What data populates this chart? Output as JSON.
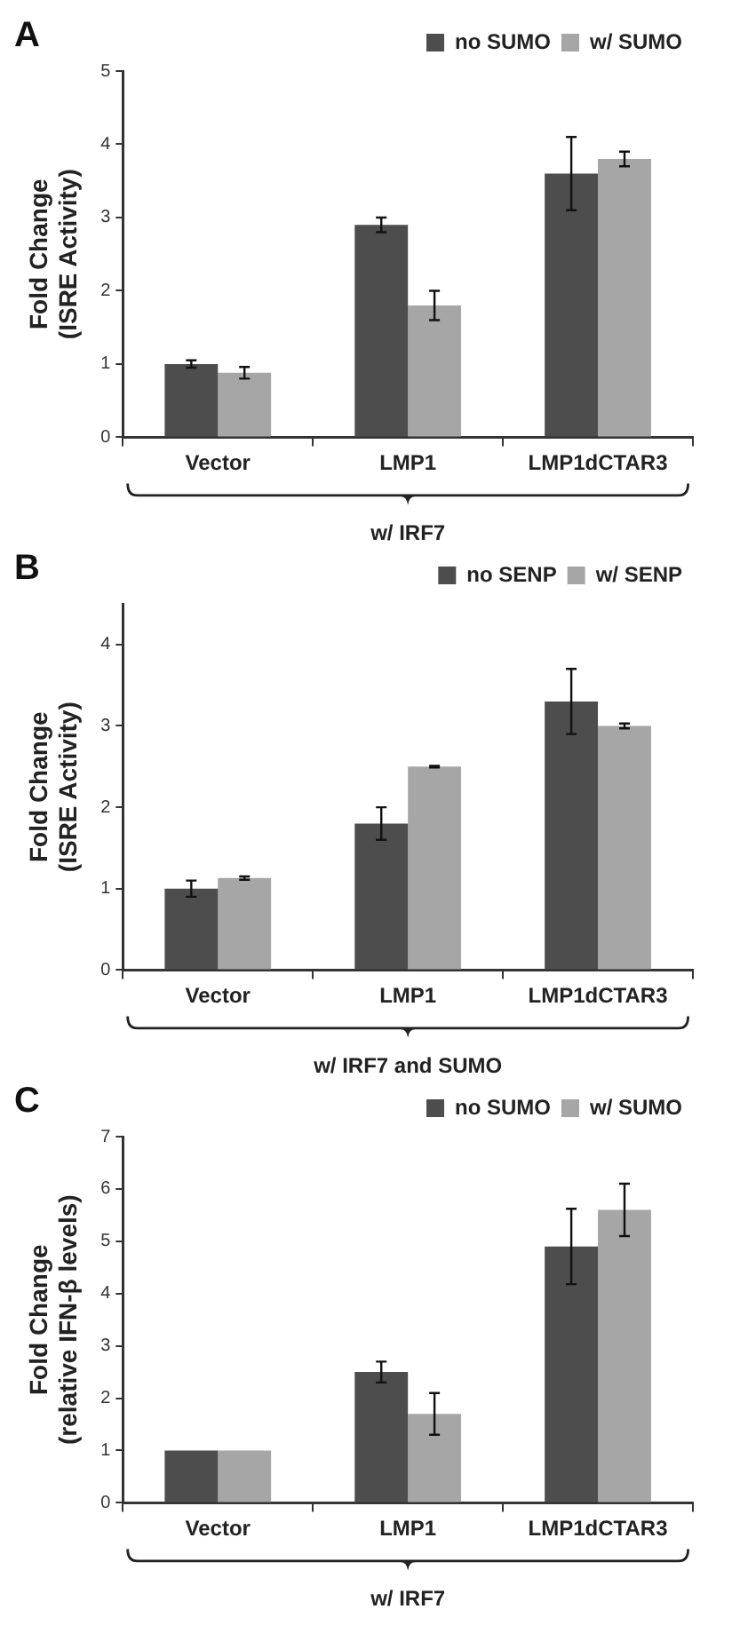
{
  "chart_data": [
    {
      "type": "bar",
      "title": "A",
      "ylabel": "Fold Change\n(ISRE Activity)",
      "xlabel": "w/ IRF7",
      "categories": [
        "Vector",
        "LMP1",
        "LMP1dCTAR3"
      ],
      "ylim": [
        0,
        5
      ],
      "yticks": [
        0,
        1,
        2,
        3,
        4,
        5
      ],
      "grid": false,
      "legend": "top right",
      "series": [
        {
          "name": "no SUMO",
          "color": "#4d4d4d",
          "values": [
            1.0,
            2.9,
            3.6
          ],
          "errors": [
            0.05,
            0.1,
            0.5
          ]
        },
        {
          "name": "w/ SUMO",
          "color": "#a6a6a6",
          "values": [
            0.88,
            1.8,
            3.8
          ],
          "errors": [
            0.08,
            0.2,
            0.1
          ]
        }
      ]
    },
    {
      "type": "bar",
      "title": "B",
      "ylabel": "Fold Change\n(ISRE Activity)",
      "xlabel": "w/ IRF7 and SUMO",
      "categories": [
        "Vector",
        "LMP1",
        "LMP1dCTAR3"
      ],
      "ylim": [
        0,
        4.5
      ],
      "yticks": [
        0,
        1,
        2,
        3,
        4
      ],
      "grid": false,
      "legend": "top right",
      "series": [
        {
          "name": "no SENP",
          "color": "#4d4d4d",
          "values": [
            1.0,
            1.8,
            3.3
          ],
          "errors": [
            0.1,
            0.2,
            0.4
          ]
        },
        {
          "name": "w/ SENP",
          "color": "#a6a6a6",
          "values": [
            1.13,
            2.5,
            3.0
          ],
          "errors": [
            0.02,
            0.01,
            0.03
          ]
        }
      ]
    },
    {
      "type": "bar",
      "title": "C",
      "ylabel": "Fold Change\n(relative IFN-β levels)",
      "xlabel": "w/ IRF7",
      "categories": [
        "Vector",
        "LMP1",
        "LMP1dCTAR3"
      ],
      "ylim": [
        0,
        7
      ],
      "yticks": [
        0,
        1,
        2,
        3,
        4,
        5,
        6,
        7
      ],
      "grid": false,
      "legend": "top right",
      "series": [
        {
          "name": "no SUMO",
          "color": "#4d4d4d",
          "values": [
            1.0,
            2.5,
            4.9
          ],
          "errors": [
            null,
            0.2,
            0.72
          ]
        },
        {
          "name": "w/ SUMO",
          "color": "#a6a6a6",
          "values": [
            1.0,
            1.7,
            5.6
          ],
          "errors": [
            null,
            0.4,
            0.5
          ]
        }
      ]
    }
  ]
}
